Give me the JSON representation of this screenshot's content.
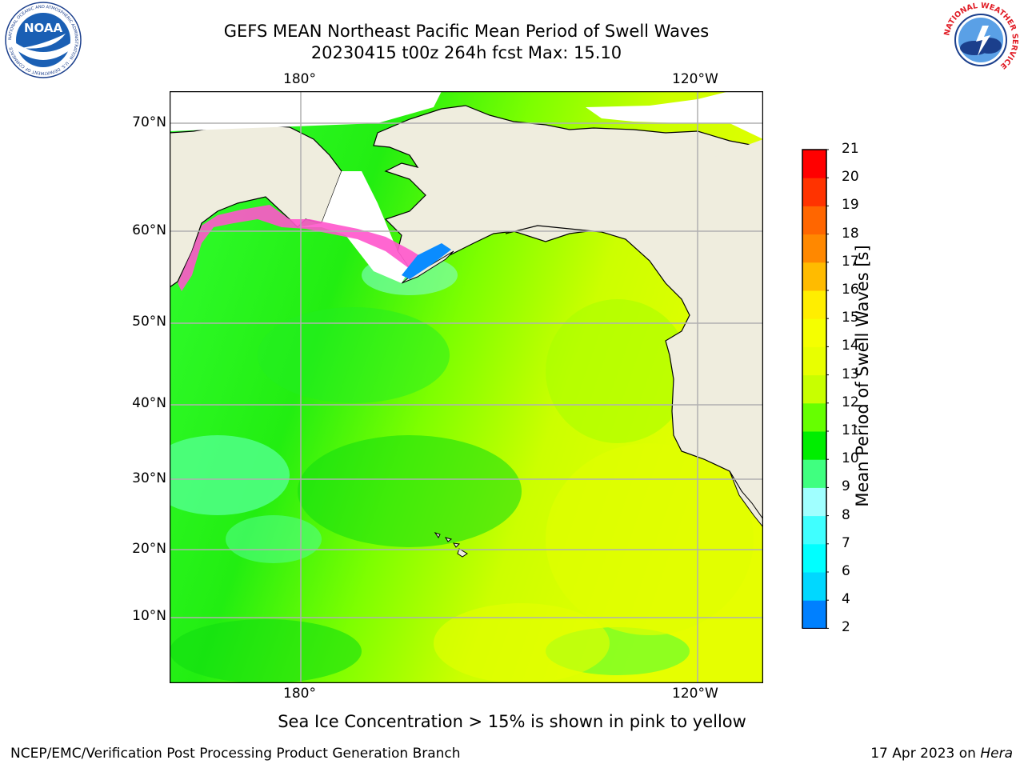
{
  "header": {
    "title_line1": "GEFS MEAN Northeast Pacific Mean Period of Swell Waves",
    "title_line2": "20230415 t00z 264h fcst   Max: 15.10"
  },
  "logos": {
    "noaa": {
      "text": "NOAA",
      "ring_text": "NATIONAL OCEANIC AND ATMOSPHERIC ADMINISTRATION · U.S. DEPARTMENT OF COMMERCE"
    },
    "nws": {
      "ring_text": "NATIONAL WEATHER SERVICE"
    }
  },
  "map": {
    "lon_labels_top": [
      "180°",
      "120°W"
    ],
    "lon_labels_bottom": [
      "180°",
      "120°W"
    ],
    "lat_labels": [
      "70°N",
      "60°N",
      "50°N",
      "40°N",
      "30°N",
      "20°N",
      "10°N"
    ],
    "colors": {
      "land": "#efedde",
      "ocean_low": "#33ff33",
      "ocean_high": "#e0ff00",
      "ice": "#ff66cc",
      "grid": "#b0b0b0",
      "coast": "#000000"
    }
  },
  "colorbar": {
    "title": "Mean Period of Swell Waves [s]",
    "ticks": [
      "21",
      "20",
      "19",
      "18",
      "17",
      "16",
      "15",
      "14",
      "13",
      "12",
      "11",
      "10",
      "9",
      "8",
      "7",
      "6",
      "4",
      "2"
    ],
    "colors_bottom_to_top": [
      "#0000ff",
      "#0080ff",
      "#00d8ff",
      "#00ffff",
      "#40ffff",
      "#a0ffff",
      "#40ff80",
      "#00ee00",
      "#66ff00",
      "#c8ff00",
      "#e8ff00",
      "#f5ff00",
      "#ffee00",
      "#ffbb00",
      "#ff8800",
      "#ff6600",
      "#ff3300",
      "#ff0000"
    ]
  },
  "note": "Sea Ice Concentration > 15% is shown in pink to yellow",
  "footer": {
    "left": "NCEP/EMC/Verification Post Processing Product Generation Branch",
    "right_prefix": "17 Apr 2023 on ",
    "right_italic": "Hera"
  }
}
